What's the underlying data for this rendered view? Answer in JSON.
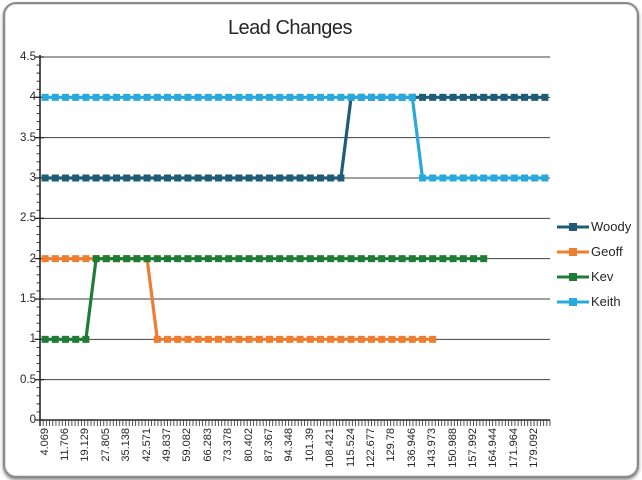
{
  "window": {
    "background": "#ffffff",
    "frame_border_color": "#8a8a8a"
  },
  "chart_data": {
    "type": "line",
    "title": "Lead Changes",
    "xlabel": "",
    "ylabel": "",
    "ylim": [
      0,
      4.5
    ],
    "ytick_step": 0.5,
    "y_minor_step": 0.1,
    "grid": true,
    "legend_position": "right",
    "n_points": 50,
    "x_label_every": 2,
    "x_tick_labels": [
      "4.069",
      "11.706",
      "19.129",
      "27.805",
      "35.138",
      "42.571",
      "49.837",
      "59.082",
      "66.283",
      "73.378",
      "80.402",
      "87.367",
      "94.348",
      "101.39",
      "108.421",
      "115.524",
      "122.677",
      "129.78",
      "136.946",
      "143.973",
      "150.988",
      "157.992",
      "164.944",
      "171.964",
      "179.092"
    ],
    "y_tick_labels": [
      "0",
      "0.5",
      "1",
      "1.5",
      "2",
      "2.5",
      "3",
      "3.5",
      "4",
      "4.5"
    ],
    "axis_color": "#262626",
    "grid_color": "#404040",
    "tick_label_color": "#262626",
    "series": [
      {
        "name": "Woody",
        "color": "#1E5C78",
        "values": [
          3,
          3,
          3,
          3,
          3,
          3,
          3,
          3,
          3,
          3,
          3,
          3,
          3,
          3,
          3,
          3,
          3,
          3,
          3,
          3,
          3,
          3,
          3,
          3,
          3,
          3,
          3,
          3,
          3,
          3,
          4,
          4,
          4,
          4,
          4,
          4,
          4,
          4,
          4,
          4,
          4,
          4,
          4,
          4,
          4,
          4,
          4,
          4,
          4,
          4
        ]
      },
      {
        "name": "Geoff",
        "color": "#ED7D31",
        "values": [
          2,
          2,
          2,
          2,
          2,
          2,
          2,
          2,
          2,
          2,
          2,
          1,
          1,
          1,
          1,
          1,
          1,
          1,
          1,
          1,
          1,
          1,
          1,
          1,
          1,
          1,
          1,
          1,
          1,
          1,
          1,
          1,
          1,
          1,
          1,
          1,
          1,
          1,
          1
        ]
      },
      {
        "name": "Kev",
        "color": "#1E7C34",
        "values": [
          1,
          1,
          1,
          1,
          1,
          2,
          2,
          2,
          2,
          2,
          2,
          2,
          2,
          2,
          2,
          2,
          2,
          2,
          2,
          2,
          2,
          2,
          2,
          2,
          2,
          2,
          2,
          2,
          2,
          2,
          2,
          2,
          2,
          2,
          2,
          2,
          2,
          2,
          2,
          2,
          2,
          2,
          2,
          2
        ]
      },
      {
        "name": "Keith",
        "color": "#29A8DC",
        "values": [
          4,
          4,
          4,
          4,
          4,
          4,
          4,
          4,
          4,
          4,
          4,
          4,
          4,
          4,
          4,
          4,
          4,
          4,
          4,
          4,
          4,
          4,
          4,
          4,
          4,
          4,
          4,
          4,
          4,
          4,
          4,
          4,
          4,
          4,
          4,
          4,
          4,
          3,
          3,
          3,
          3,
          3,
          3,
          3,
          3,
          3,
          3,
          3,
          3,
          3
        ]
      }
    ]
  }
}
